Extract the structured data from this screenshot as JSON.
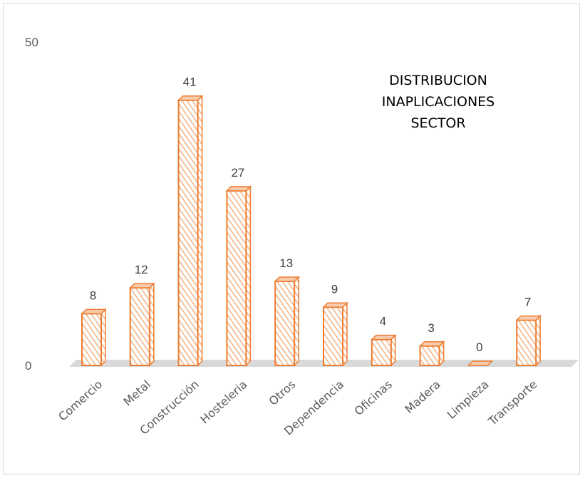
{
  "chart_data": {
    "type": "bar",
    "title_lines": [
      "DISTRIBUCION",
      "INAPLICACIONES",
      "SECTOR"
    ],
    "categories": [
      "Comercio",
      "Metal",
      "Construcción",
      "Hosteleria",
      "Otros",
      "Dependencia",
      "Oficinas",
      "Madera",
      "Limpieza",
      "Transporte"
    ],
    "values": [
      8,
      12,
      41,
      27,
      13,
      9,
      4,
      3,
      0,
      7
    ],
    "ylim": [
      0,
      50
    ],
    "y_ticks": [
      "0",
      "50"
    ],
    "grid": false,
    "legend": "none",
    "style": "3d-column-hatched",
    "colors": {
      "bar_stroke": "#ed7d31",
      "hatch": "#f4b183",
      "bar_fill": "#ffffff",
      "top_face": "#f8cbad",
      "floor": "#d9d9d9"
    }
  }
}
